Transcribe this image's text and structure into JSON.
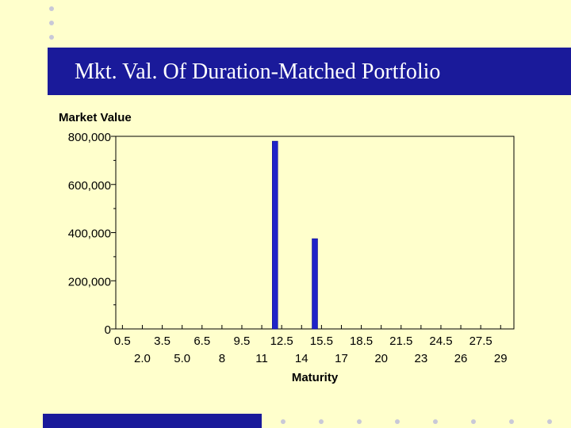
{
  "slide": {
    "title": "Mkt. Val. Of Duration-Matched Portfolio",
    "bg_color": "#FFFFCC",
    "accent_color": "#1A1A9A"
  },
  "chart_data": {
    "type": "bar",
    "title": "",
    "ylabel": "Market Value",
    "xlabel": "Maturity",
    "ylim": [
      0,
      800000
    ],
    "xlim": [
      0,
      30
    ],
    "y_ticks": [
      0,
      200000,
      400000,
      600000,
      800000
    ],
    "y_tick_labels": [
      "0",
      "200,000",
      "400,000",
      "600,000",
      "800,000"
    ],
    "x_ticks_row1": [
      "0.5",
      "3.5",
      "6.5",
      "9.5",
      "12.5",
      "15.5",
      "18.5",
      "21.5",
      "24.5",
      "27.5"
    ],
    "x_ticks_row1_values": [
      0.5,
      3.5,
      6.5,
      9.5,
      12.5,
      15.5,
      18.5,
      21.5,
      24.5,
      27.5
    ],
    "x_ticks_row2": [
      "2.0",
      "5.0",
      "8",
      "11",
      "14",
      "17",
      "20",
      "23",
      "26",
      "29"
    ],
    "x_ticks_row2_values": [
      2.0,
      5.0,
      8,
      11,
      14,
      17,
      20,
      23,
      26,
      29
    ],
    "series": [
      {
        "name": "Market Value",
        "color": "#1E22C8",
        "points": [
          {
            "x": 12,
            "value": 780000
          },
          {
            "x": 15,
            "value": 375000
          }
        ]
      }
    ]
  }
}
